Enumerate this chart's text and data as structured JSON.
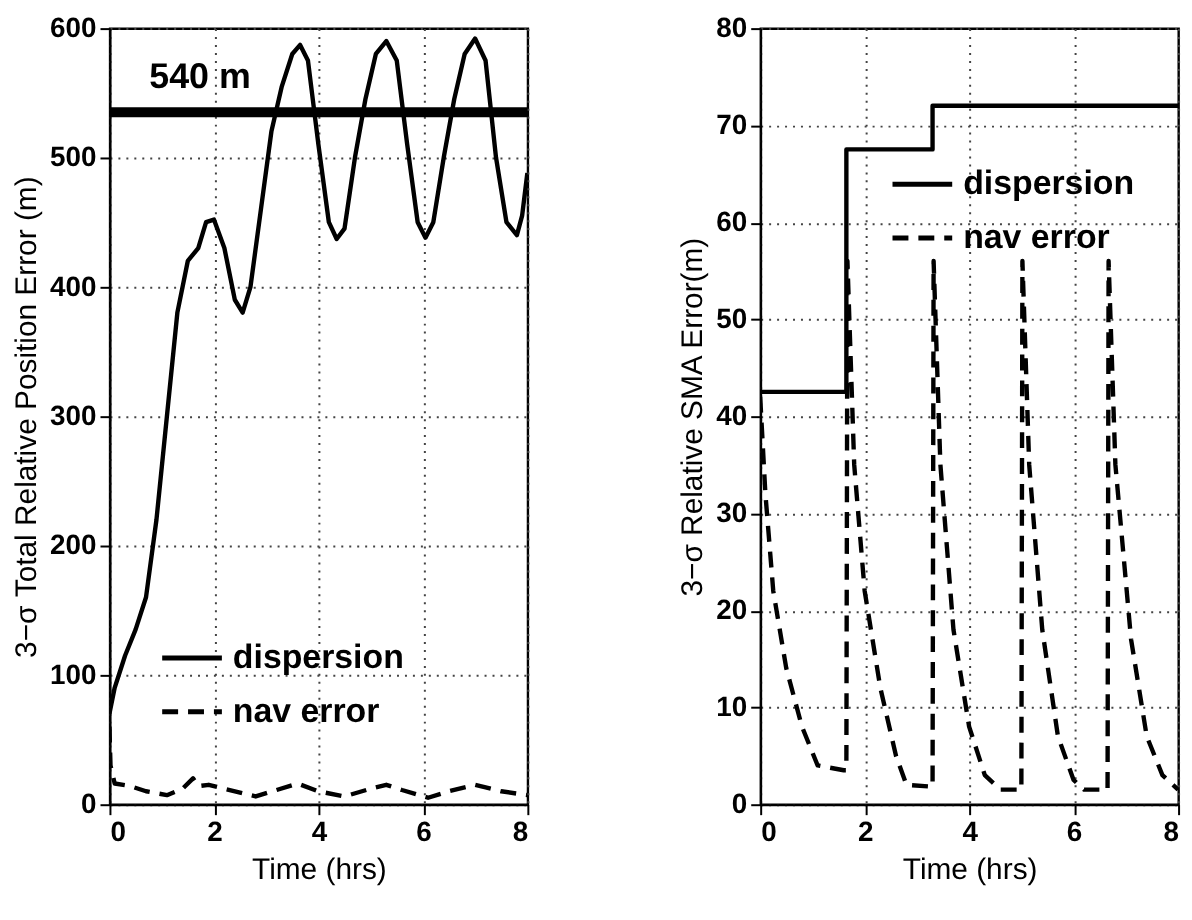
{
  "chart_data": [
    {
      "type": "line",
      "xlabel": "Time (hrs)",
      "ylabel": "3−σ Total Relative Position Error (m)",
      "xlim": [
        0,
        8
      ],
      "xticks": [
        0,
        2,
        4,
        6,
        8
      ],
      "ylim": [
        0,
        600
      ],
      "yticks": [
        0,
        100,
        200,
        300,
        400,
        500,
        600
      ],
      "grid": true,
      "legend": "bottom left",
      "ref_lines": [
        {
          "axis": "y",
          "value": 535,
          "label": "540 m",
          "color": "#000000"
        }
      ],
      "series": [
        {
          "name": "dispersion",
          "color": "#000000",
          "line_style": "solid",
          "x": [
            0,
            0.1,
            0.3,
            0.5,
            0.7,
            0.9,
            1.1,
            1.3,
            1.5,
            1.7,
            1.85,
            2.0,
            2.2,
            2.4,
            2.55,
            2.7,
            2.9,
            3.1,
            3.3,
            3.5,
            3.65,
            3.8,
            4.0,
            4.2,
            4.35,
            4.5,
            4.7,
            4.9,
            5.1,
            5.3,
            5.5,
            5.7,
            5.9,
            6.05,
            6.2,
            6.4,
            6.6,
            6.8,
            7.0,
            7.2,
            7.4,
            7.6,
            7.8,
            7.9,
            8.0
          ],
          "values": [
            70,
            90,
            115,
            135,
            160,
            220,
            300,
            380,
            420,
            430,
            450,
            452,
            430,
            390,
            380,
            400,
            460,
            520,
            555,
            580,
            587,
            575,
            510,
            450,
            437,
            445,
            500,
            545,
            580,
            590,
            575,
            510,
            450,
            438,
            450,
            500,
            545,
            580,
            592,
            575,
            500,
            450,
            440,
            455,
            488
          ]
        },
        {
          "name": "nav error",
          "color": "#000000",
          "line_style": "dashed",
          "x": [
            0,
            0.02,
            0.1,
            0.4,
            0.7,
            1.1,
            1.4,
            1.6,
            1.7,
            1.9,
            2.2,
            2.8,
            3.2,
            3.6,
            4.0,
            4.5,
            5.0,
            5.3,
            5.6,
            6.1,
            6.5,
            7.0,
            7.5,
            8.0
          ],
          "values": [
            60,
            30,
            16,
            14,
            10,
            7,
            12,
            20,
            14,
            15,
            12,
            6,
            11,
            16,
            10,
            6,
            12,
            15,
            11,
            5,
            10,
            15,
            10,
            7
          ]
        }
      ]
    },
    {
      "type": "line",
      "xlabel": "Time (hrs)",
      "ylabel": "3−σ Relative SMA Error(m)",
      "xlim": [
        0,
        8
      ],
      "xticks": [
        0,
        2,
        4,
        6,
        8
      ],
      "ylim": [
        0,
        80
      ],
      "yticks": [
        0,
        10,
        20,
        30,
        40,
        50,
        60,
        70,
        80
      ],
      "grid": true,
      "legend": "top right",
      "series": [
        {
          "name": "dispersion",
          "color": "#000000",
          "line_style": "solid",
          "x": [
            0,
            1.65,
            1.65,
            3.3,
            3.3,
            8
          ],
          "values": [
            42.5,
            42.5,
            67.5,
            67.5,
            72,
            72
          ]
        },
        {
          "name": "nav error",
          "color": "#000000",
          "line_style": "dashed",
          "x": [
            0,
            0.1,
            0.25,
            0.5,
            0.8,
            1.1,
            1.6,
            1.65,
            1.67,
            1.8,
            2.0,
            2.3,
            2.6,
            2.8,
            3.3,
            3.32,
            3.45,
            3.7,
            4.0,
            4.3,
            4.6,
            5.0,
            5.02,
            5.15,
            5.4,
            5.7,
            6.0,
            6.2,
            6.65,
            6.67,
            6.8,
            7.1,
            7.4,
            7.7,
            8.0
          ],
          "values": [
            42,
            32,
            22,
            14,
            8,
            4,
            3.5,
            3.5,
            56,
            35,
            22,
            12,
            5,
            2,
            1.8,
            56,
            35,
            18,
            8,
            3,
            1.5,
            1.5,
            56,
            35,
            18,
            7,
            2.5,
            1.5,
            1.5,
            56,
            35,
            17,
            7,
            3,
            1.5
          ]
        }
      ]
    }
  ]
}
